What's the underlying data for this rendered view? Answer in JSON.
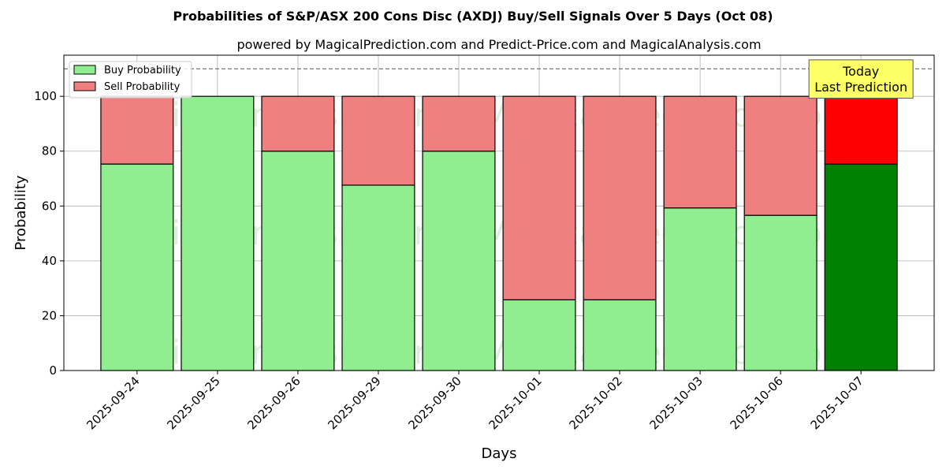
{
  "chart_data": {
    "type": "bar",
    "title": "Probabilities of S&P/ASX 200 Cons Disc (AXDJ) Buy/Sell Signals Over 5 Days (Oct 08)",
    "subtitle": "powered by MagicalPrediction.com and Predict-Price.com and MagicalAnalysis.com",
    "xlabel": "Days",
    "ylabel": "Probability",
    "ylim": [
      0,
      115
    ],
    "yticks": [
      0,
      20,
      40,
      60,
      80,
      100
    ],
    "reference_line": 110,
    "grid": true,
    "legend_position": "top-left",
    "categories": [
      "2025-09-24",
      "2025-09-25",
      "2025-09-26",
      "2025-09-29",
      "2025-09-30",
      "2025-10-01",
      "2025-10-02",
      "2025-10-03",
      "2025-10-06",
      "2025-10-07"
    ],
    "series": [
      {
        "name": "Buy Probability",
        "color": "#90ee90",
        "highlight_color": "#008000",
        "values": [
          75.3,
          100,
          80,
          67.6,
          80,
          25.8,
          25.8,
          59.3,
          56.6,
          75.3
        ]
      },
      {
        "name": "Sell Probability",
        "color": "#f08080",
        "highlight_color": "#ff0000",
        "values": [
          24.7,
          0,
          20,
          32.4,
          20,
          74.2,
          74.2,
          40.7,
          43.4,
          24.7
        ]
      }
    ],
    "highlight_index": 9,
    "annotation": {
      "line1": "Today",
      "line2": "Last Prediction",
      "background": "#ffff66"
    },
    "watermarks": [
      "MagicalAnalysis.com",
      "MagicalPrediction.com"
    ]
  }
}
